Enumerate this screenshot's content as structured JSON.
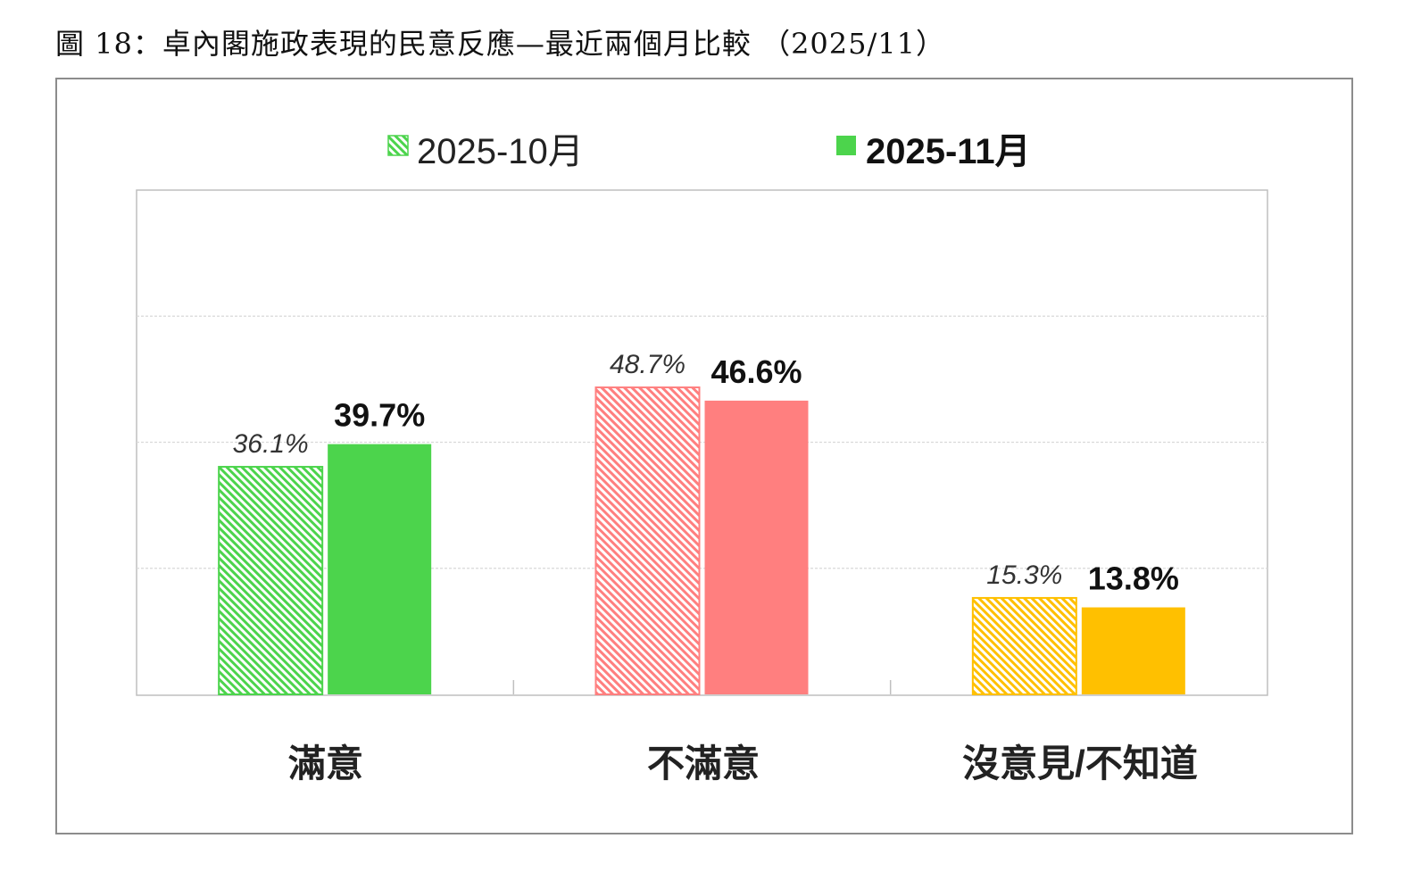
{
  "figure_title": "圖 18：卓內閣施政表現的民意反應—最近兩個月比較 （2025/11）",
  "chart_data": {
    "type": "bar",
    "categories": [
      "滿意",
      "不滿意",
      "沒意見/不知道"
    ],
    "series": [
      {
        "name": "2025-10月",
        "values": [
          36.1,
          48.7,
          15.3
        ],
        "labels": [
          "36.1%",
          "48.7%",
          "15.3%"
        ],
        "style": "hatched"
      },
      {
        "name": "2025-11月",
        "values": [
          39.7,
          46.6,
          13.8
        ],
        "labels": [
          "39.7%",
          "46.6%",
          "13.8%"
        ],
        "style": "solid"
      }
    ],
    "category_colors": [
      "#4cd44c",
      "#ff7f7f",
      "#ffc000"
    ],
    "ylim": [
      0,
      80
    ],
    "grid": true,
    "gridlines": [
      20,
      40,
      60
    ],
    "legend_position": "top-center"
  }
}
